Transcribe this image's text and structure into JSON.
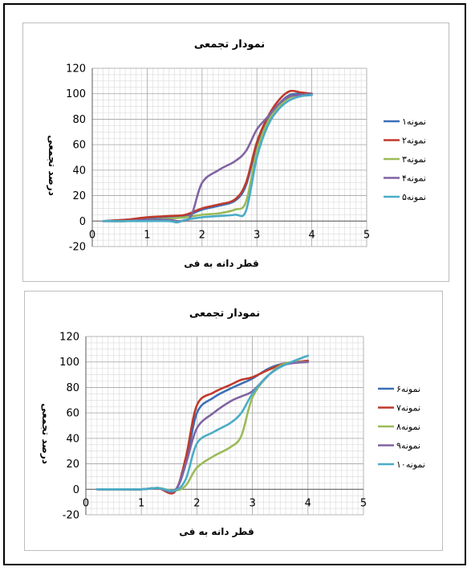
{
  "chart_data": [
    {
      "type": "line",
      "title": "نمودار تجمعی",
      "xlabel": "قطر دانه به فی",
      "ylabel": "درصد تجمعی",
      "xlim": [
        0,
        5
      ],
      "ylim": [
        -20,
        120
      ],
      "x_ticks": [
        0,
        1,
        2,
        3,
        4,
        5
      ],
      "y_ticks": [
        -20,
        0,
        20,
        40,
        60,
        80,
        100,
        120
      ],
      "grid": true,
      "legend": "right",
      "series": [
        {
          "name": "نمونه۱",
          "color": "#3b6fb6",
          "x": [
            0.2,
            0.6,
            1.0,
            1.4,
            1.7,
            2.0,
            2.3,
            2.6,
            2.8,
            3.0,
            3.2,
            3.4,
            3.6,
            3.8,
            4.0
          ],
          "y": [
            0,
            1,
            2,
            3,
            4,
            9,
            12,
            16,
            28,
            60,
            80,
            92,
            99,
            100,
            100
          ]
        },
        {
          "name": "نمونه۲",
          "color": "#c0392b",
          "x": [
            0.2,
            0.6,
            1.0,
            1.4,
            1.7,
            2.0,
            2.3,
            2.6,
            2.8,
            3.0,
            3.2,
            3.4,
            3.6,
            3.8,
            4.0
          ],
          "y": [
            0,
            1,
            3,
            4,
            5,
            10,
            13,
            17,
            30,
            62,
            82,
            95,
            102,
            101,
            100
          ]
        },
        {
          "name": "نمونه۳",
          "color": "#9bbb59",
          "x": [
            0.2,
            0.6,
            1.0,
            1.4,
            1.7,
            2.0,
            2.3,
            2.6,
            2.8,
            3.0,
            3.2,
            3.4,
            3.6,
            3.8,
            4.0
          ],
          "y": [
            0,
            0,
            1,
            2,
            3,
            5,
            6,
            9,
            15,
            55,
            78,
            90,
            97,
            99,
            100
          ]
        },
        {
          "name": "نمونه۴",
          "color": "#8064a2",
          "x": [
            0.2,
            0.6,
            1.0,
            1.4,
            1.6,
            1.8,
            2.0,
            2.3,
            2.6,
            2.8,
            3.0,
            3.2,
            3.4,
            3.6,
            3.8,
            4.0
          ],
          "y": [
            0,
            0,
            1,
            1,
            0,
            4,
            30,
            40,
            47,
            55,
            72,
            82,
            92,
            98,
            99,
            100
          ]
        },
        {
          "name": "نمونه۵",
          "color": "#4bacc6",
          "x": [
            0.2,
            0.6,
            1.0,
            1.4,
            1.55,
            1.7,
            2.0,
            2.3,
            2.6,
            2.8,
            3.0,
            3.2,
            3.4,
            3.6,
            3.8,
            4.0
          ],
          "y": [
            0,
            0,
            0,
            0,
            -1,
            1,
            3,
            4,
            5,
            8,
            50,
            75,
            88,
            95,
            98,
            99
          ]
        }
      ]
    },
    {
      "type": "line",
      "title": "نمودار تجمعی",
      "xlabel": "قطر دانه به فی",
      "ylabel": "درصد تجمعی",
      "xlim": [
        0,
        5
      ],
      "ylim": [
        -20,
        120
      ],
      "x_ticks": [
        0,
        1,
        2,
        3,
        4,
        5
      ],
      "y_ticks": [
        -20,
        0,
        20,
        40,
        60,
        80,
        100,
        120
      ],
      "grid": true,
      "legend": "right",
      "series": [
        {
          "name": "نمونه۶",
          "color": "#3b6fb6",
          "x": [
            0.2,
            0.6,
            1.0,
            1.3,
            1.6,
            1.8,
            2.0,
            2.3,
            2.6,
            2.8,
            3.0,
            3.3,
            3.6,
            4.0
          ],
          "y": [
            0,
            0,
            0,
            1,
            -1,
            20,
            60,
            72,
            79,
            83,
            87,
            95,
            99,
            100
          ]
        },
        {
          "name": "نمونه۷",
          "color": "#c0392b",
          "x": [
            0.2,
            0.6,
            1.0,
            1.3,
            1.6,
            1.8,
            2.0,
            2.3,
            2.6,
            2.8,
            3.0,
            3.3,
            3.6,
            4.0
          ],
          "y": [
            0,
            0,
            0,
            1,
            -2,
            25,
            66,
            76,
            82,
            86,
            88,
            94,
            99,
            101
          ]
        },
        {
          "name": "نمونه۸",
          "color": "#9bbb59",
          "x": [
            0.2,
            0.6,
            1.0,
            1.3,
            1.6,
            1.8,
            2.0,
            2.3,
            2.6,
            2.8,
            3.0,
            3.3,
            3.6,
            4.0
          ],
          "y": [
            0,
            0,
            0,
            1,
            -1,
            3,
            17,
            26,
            33,
            42,
            72,
            90,
            99,
            100
          ]
        },
        {
          "name": "نمونه۹",
          "color": "#8064a2",
          "x": [
            0.2,
            0.6,
            1.0,
            1.3,
            1.6,
            1.8,
            2.0,
            2.3,
            2.6,
            2.8,
            3.0,
            3.3,
            3.6,
            4.0
          ],
          "y": [
            0,
            0,
            0,
            1,
            -1,
            20,
            48,
            60,
            69,
            73,
            77,
            90,
            98,
            100
          ]
        },
        {
          "name": "نمونه۱۰",
          "color": "#4bacc6",
          "x": [
            0.2,
            0.6,
            1.0,
            1.3,
            1.6,
            1.8,
            2.0,
            2.3,
            2.6,
            2.8,
            3.0,
            3.3,
            3.6,
            4.0
          ],
          "y": [
            0,
            0,
            0,
            1,
            -1,
            8,
            36,
            45,
            52,
            60,
            75,
            90,
            98,
            105
          ]
        }
      ]
    }
  ]
}
